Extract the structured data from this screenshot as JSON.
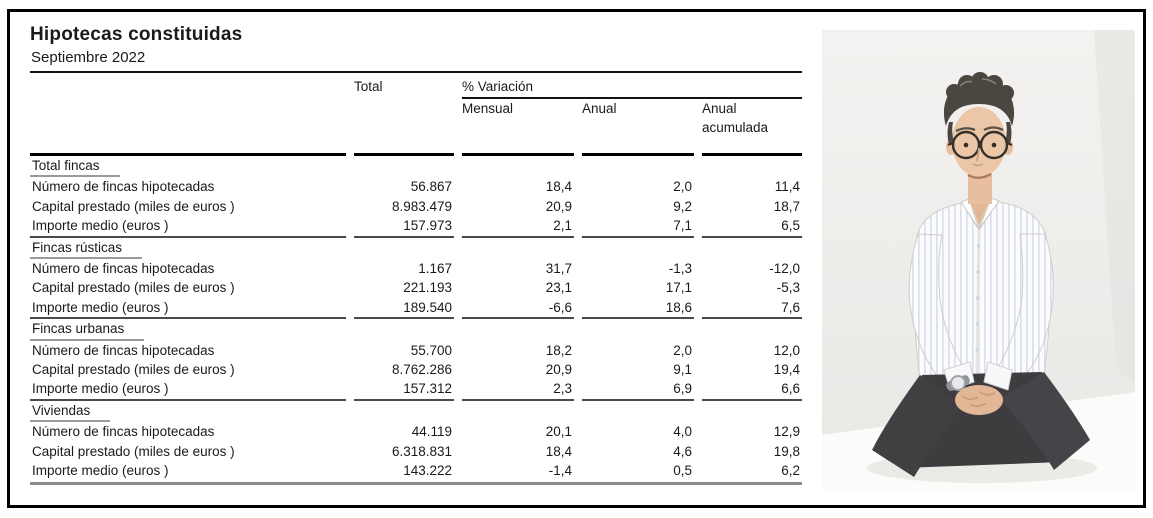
{
  "window": {
    "title": "Hipotecas constituidas",
    "subtitle": "Septiembre 2022"
  },
  "table": {
    "col_headers": {
      "total": "Total",
      "variation_group": "% Variación",
      "monthly": "Mensual",
      "annual": "Anual",
      "annual_cumulative": "Anual acumulada"
    },
    "sections": [
      {
        "title": "Total fincas",
        "rows": [
          {
            "label": "Número de fincas hipotecadas",
            "total": "56.867",
            "monthly": "18,4",
            "annual": "2,0",
            "annual_cumulative": "11,4"
          },
          {
            "label": "Capital prestado (miles de euros )",
            "total": "8.983.479",
            "monthly": "20,9",
            "annual": "9,2",
            "annual_cumulative": "18,7"
          },
          {
            "label": "Importe medio (euros )",
            "total": "157.973",
            "monthly": "2,1",
            "annual": "7,1",
            "annual_cumulative": "6,5"
          }
        ]
      },
      {
        "title": "Fincas rústicas",
        "rows": [
          {
            "label": "Número de fincas hipotecadas",
            "total": "1.167",
            "monthly": "31,7",
            "annual": "-1,3",
            "annual_cumulative": "-12,0"
          },
          {
            "label": "Capital prestado (miles de euros )",
            "total": "221.193",
            "monthly": "23,1",
            "annual": "17,1",
            "annual_cumulative": "-5,3"
          },
          {
            "label": "Importe medio (euros )",
            "total": "189.540",
            "monthly": "-6,6",
            "annual": "18,6",
            "annual_cumulative": "7,6"
          }
        ]
      },
      {
        "title": "Fincas urbanas",
        "rows": [
          {
            "label": "Número de fincas hipotecadas",
            "total": "55.700",
            "monthly": "18,2",
            "annual": "2,0",
            "annual_cumulative": "12,0"
          },
          {
            "label": "Capital prestado (miles de euros )",
            "total": "8.762.286",
            "monthly": "20,9",
            "annual": "9,1",
            "annual_cumulative": "19,4"
          },
          {
            "label": "Importe medio (euros )",
            "total": "157.312",
            "monthly": "2,3",
            "annual": "6,9",
            "annual_cumulative": "6,6"
          }
        ]
      },
      {
        "title": "Viviendas",
        "rows": [
          {
            "label": "Número de fincas hipotecadas",
            "total": "44.119",
            "monthly": "20,1",
            "annual": "4,0",
            "annual_cumulative": "12,9"
          },
          {
            "label": "Capital prestado (miles de euros )",
            "total": "6.318.831",
            "monthly": "18,4",
            "annual": "4,6",
            "annual_cumulative": "19,8"
          },
          {
            "label": "Importe medio (euros )",
            "total": "143.222",
            "monthly": "-1,4",
            "annual": "0,5",
            "annual_cumulative": "6,2"
          }
        ]
      }
    ]
  },
  "photo": {
    "subject": "seated-man-portrait",
    "colors": {
      "background": "#f2f0ee",
      "bench": "#fbfbfa",
      "shirt": "#fcfcfe",
      "shirt_stripe": "#d9e0ec",
      "jeans": "#403f42",
      "hair": "#4b463f",
      "skin": "#ecc7a7"
    }
  }
}
